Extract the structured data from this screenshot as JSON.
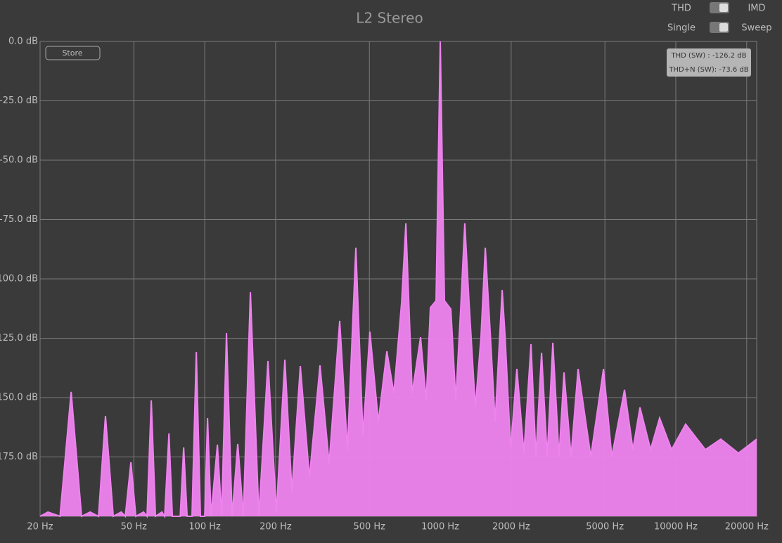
{
  "chart_data": {
    "type": "area",
    "title": "L2 Stereo",
    "x": [
      20,
      21.6,
      24.3,
      27.1,
      30,
      32.6,
      35.4,
      37.9,
      40.9,
      44.2,
      46,
      48.6,
      51,
      55,
      56.9,
      59.3,
      61.8,
      65.8,
      67.6,
      70.5,
      72.9,
      78.7,
      81.4,
      84.2,
      88.3,
      92.1,
      95.9,
      100,
      102.8,
      106.4,
      113.2,
      118,
      123.7,
      130.7,
      138.1,
      145.9,
      156.3,
      169.8,
      185.6,
      201.5,
      218.9,
      234.5,
      254.6,
      278.4,
      308.7,
      337.5,
      374.2,
      403.6,
      438.2,
      469.5,
      502.6,
      546,
      593.3,
      635.5,
      685.6,
      714.5,
      760.1,
      824.8,
      871.8,
      908.1,
      959.6,
      1000,
      1042,
      1109,
      1164,
      1222,
      1271,
      1325,
      1409,
      1489,
      1553,
      1618,
      1710,
      1832,
      1884,
      1990,
      2115,
      2266,
      2428,
      2547,
      2692,
      2845,
      3006,
      3194,
      3353,
      3592,
      3848,
      4357,
      4932,
      5350,
      6057,
      6576,
      7046,
      7814,
      8538,
      9596,
      11010,
      13350,
      15530,
      18440,
      22050
    ],
    "values": [
      -200,
      -198.2,
      -200,
      -147.6,
      -200,
      -198.2,
      -200,
      -157.7,
      -200,
      -198.2,
      -200,
      -177.2,
      -200,
      -198.2,
      -200,
      -151.2,
      -200,
      -198.2,
      -200,
      -165.1,
      -200,
      -200,
      -171,
      -200,
      -200,
      -130.8,
      -200,
      -200,
      -158.6,
      -200,
      -169.8,
      -200,
      -122.8,
      -200,
      -169.5,
      -200,
      -105.6,
      -200,
      -134.6,
      -198.2,
      -134,
      -189.6,
      -136.7,
      -183.7,
      -136.4,
      -177.8,
      -117.7,
      -171.9,
      -86.9,
      -166,
      -122.2,
      -160.1,
      -130.5,
      -148.2,
      -109.8,
      -76.6,
      -148.2,
      -124.6,
      -151.2,
      -112.1,
      -109.2,
      0,
      -109.2,
      -112.7,
      -151.2,
      -111.8,
      -76.6,
      -109.8,
      -154.1,
      -124.6,
      -86.9,
      -117.2,
      -160.1,
      -104.7,
      -124,
      -171.9,
      -137.9,
      -173.4,
      -127.5,
      -174.9,
      -131.1,
      -174.9,
      -126.9,
      -174.9,
      -139.4,
      -174.9,
      -137.9,
      -174.9,
      -137.9,
      -174.9,
      -146.7,
      -171.9,
      -154.1,
      -171.9,
      -158.6,
      -171.9,
      -161.2,
      -171.9,
      -167.5,
      -173.4,
      -167.5
    ],
    "color": "#ee82ee",
    "xscale": "log",
    "grid": true,
    "xlim": [
      20,
      22050
    ],
    "ylim": [
      -200,
      0
    ],
    "xticks": [
      {
        "value": 20,
        "label": "20 Hz"
      },
      {
        "value": 50,
        "label": "50 Hz"
      },
      {
        "value": 100,
        "label": "100 Hz"
      },
      {
        "value": 200,
        "label": "200 Hz"
      },
      {
        "value": 500,
        "label": "500 Hz"
      },
      {
        "value": 1000,
        "label": "1000 Hz"
      },
      {
        "value": 2000,
        "label": "2000 Hz"
      },
      {
        "value": 5000,
        "label": "5000 Hz"
      },
      {
        "value": 10000,
        "label": "10000 Hz"
      },
      {
        "value": 20000,
        "label": "20000 Hz"
      }
    ],
    "yticks": [
      {
        "value": 0,
        "label": "0.0 dB"
      },
      {
        "value": -25,
        "label": "-25.0 dB"
      },
      {
        "value": -50,
        "label": "-50.0 dB"
      },
      {
        "value": -75,
        "label": "-75.0 dB"
      },
      {
        "value": -100,
        "label": "-100.0 dB"
      },
      {
        "value": -125,
        "label": "-125.0 dB"
      },
      {
        "value": -150,
        "label": "-150.0 dB"
      },
      {
        "value": -175,
        "label": "-175.0 dB"
      }
    ]
  },
  "controls": {
    "mode_left": "THD",
    "mode_right": "IMD",
    "run_left": "Single",
    "run_right": "Sweep",
    "store": "Store"
  },
  "readout": [
    "THD (SW) : -126.2 dB",
    "THD+N (SW): -73.6 dB"
  ]
}
